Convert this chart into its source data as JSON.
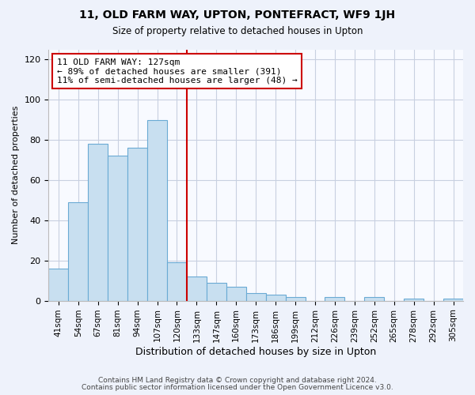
{
  "title": "11, OLD FARM WAY, UPTON, PONTEFRACT, WF9 1JH",
  "subtitle": "Size of property relative to detached houses in Upton",
  "xlabel": "Distribution of detached houses by size in Upton",
  "ylabel": "Number of detached properties",
  "bar_labels": [
    "41sqm",
    "54sqm",
    "67sqm",
    "81sqm",
    "94sqm",
    "107sqm",
    "120sqm",
    "133sqm",
    "147sqm",
    "160sqm",
    "173sqm",
    "186sqm",
    "199sqm",
    "212sqm",
    "226sqm",
    "239sqm",
    "252sqm",
    "265sqm",
    "278sqm",
    "292sqm",
    "305sqm"
  ],
  "bar_values": [
    16,
    49,
    78,
    72,
    76,
    90,
    19,
    12,
    9,
    7,
    4,
    3,
    2,
    0,
    2,
    0,
    2,
    0,
    1,
    0,
    1
  ],
  "bar_color": "#c8dff0",
  "bar_edge_color": "#6aaad4",
  "vline_index": 6,
  "vline_color": "#cc0000",
  "annotation_line1": "11 OLD FARM WAY: 127sqm",
  "annotation_line2": "← 89% of detached houses are smaller (391)",
  "annotation_line3": "11% of semi-detached houses are larger (48) →",
  "annotation_box_edge_color": "#cc0000",
  "ylim": [
    0,
    125
  ],
  "yticks": [
    0,
    20,
    40,
    60,
    80,
    100,
    120
  ],
  "footer_line1": "Contains HM Land Registry data © Crown copyright and database right 2024.",
  "footer_line2": "Contains public sector information licensed under the Open Government Licence v3.0.",
  "background_color": "#eef2fb",
  "plot_background_color": "#f8faff",
  "grid_color": "#c8d0e0"
}
